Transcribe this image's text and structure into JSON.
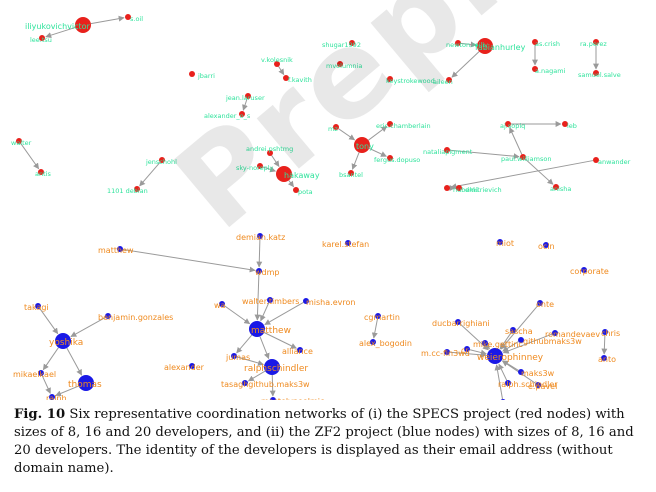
{
  "colors": {
    "specs_node": "#e8211c",
    "zf2_node": "#1a19e6",
    "specs_label": "#2fe39c",
    "zf2_label": "#ef8a1f",
    "edge": "#9a9a9a"
  },
  "watermark": "Preprint",
  "caption": {
    "figure_label": "Fig. 10",
    "text": "Six representative coordination networks of (i) the SPECS project (red nodes) with sizes of 8, 16 and 20 developers, and (ii) the ZF2 project (blue nodes) with sizes of 8, 16 and 20 developers. The identity of the developers is displayed as their email address (without domain name)."
  },
  "networks": [
    {
      "project": "SPECS",
      "nodes": [
        {
          "id": "s1",
          "label": "iliyukovichvictor",
          "big": true
        },
        {
          "id": "s2",
          "label": "lee.tsu"
        },
        {
          "id": "s3",
          "label": "s.oil"
        },
        {
          "id": "s4",
          "label": "jbarri"
        },
        {
          "id": "s5",
          "label": "v.kolesnik"
        },
        {
          "id": "s6",
          "label": "f.kavith"
        },
        {
          "id": "s7",
          "label": "shugar1992"
        },
        {
          "id": "s8",
          "label": "mvolumnia"
        },
        {
          "id": "s9",
          "label": "keystrokewood"
        },
        {
          "id": "s10",
          "label": "jean.laruser"
        },
        {
          "id": "s11",
          "label": "alexander_o_s"
        },
        {
          "id": "s12",
          "label": "walter"
        },
        {
          "id": "s13",
          "label": "antis"
        },
        {
          "id": "s14",
          "label": "jenschohl"
        },
        {
          "id": "s15",
          "label": "1101 debian"
        },
        {
          "id": "s16",
          "label": "andrei.pshtmg"
        },
        {
          "id": "s17",
          "label": "sky-noreply"
        },
        {
          "id": "s18",
          "label": "hakaway",
          "big": true
        },
        {
          "id": "s19",
          "label": "pota"
        },
        {
          "id": "s20",
          "label": "tony",
          "big": true
        },
        {
          "id": "s21",
          "label": "eric.chamberlain"
        },
        {
          "id": "s22",
          "label": "fergus.dopuso"
        },
        {
          "id": "s23",
          "label": "bsantel"
        },
        {
          "id": "s24",
          "label": "mz"
        },
        {
          "id": "s25",
          "label": "newton.reilly"
        },
        {
          "id": "s26",
          "label": "fabianhurley",
          "big": true
        },
        {
          "id": "s27",
          "label": "as.crish"
        },
        {
          "id": "s28",
          "label": "aileen"
        },
        {
          "id": "s29",
          "label": "a.nagami"
        },
        {
          "id": "s30",
          "label": "ra.perez"
        },
        {
          "id": "s31",
          "label": "samuel.salve"
        },
        {
          "id": "s32",
          "label": "nataliapigment"
        },
        {
          "id": "s33",
          "label": "paul.williamson"
        },
        {
          "id": "s34",
          "label": "anisha"
        },
        {
          "id": "s35",
          "label": "aj.sopiq"
        },
        {
          "id": "s36",
          "label": "leb"
        },
        {
          "id": "s37",
          "label": "anwander"
        },
        {
          "id": "s38",
          "label": "nubekki"
        },
        {
          "id": "s39",
          "label": "dmitrievich"
        }
      ]
    },
    {
      "project": "ZF2",
      "nodes": [
        {
          "id": "z1",
          "label": "matthew"
        },
        {
          "id": "z2",
          "label": "demian.katz"
        },
        {
          "id": "z3",
          "label": "karel.stefan"
        },
        {
          "id": "z4",
          "label": "wdmp"
        },
        {
          "id": "z5",
          "label": "miot"
        },
        {
          "id": "z6",
          "label": "ocin"
        },
        {
          "id": "z7",
          "label": "corporate"
        },
        {
          "id": "z8",
          "label": "takagi"
        },
        {
          "id": "z9",
          "label": "benjamin.gonzales"
        },
        {
          "id": "z10",
          "label": "yoshika",
          "big": true
        },
        {
          "id": "z11",
          "label": "mikaelkael"
        },
        {
          "id": "z12",
          "label": "thomas",
          "big": true
        },
        {
          "id": "z13",
          "label": "ralph"
        },
        {
          "id": "z14",
          "label": "alexander"
        },
        {
          "id": "z15",
          "label": "wa"
        },
        {
          "id": "z16",
          "label": "walter.timbers"
        },
        {
          "id": "z17",
          "label": "misha.evron"
        },
        {
          "id": "z18",
          "label": "matthew",
          "big": true
        },
        {
          "id": "z19",
          "label": "alliance"
        },
        {
          "id": "z20",
          "label": "jumas"
        },
        {
          "id": "z21",
          "label": "ralphschindler",
          "big": true
        },
        {
          "id": "z22",
          "label": "tasaghgithub.maks3w"
        },
        {
          "id": "z23",
          "label": "mastelypoolmic"
        },
        {
          "id": "z24",
          "label": "cgmartin"
        },
        {
          "id": "z25",
          "label": "alex_bogodin"
        },
        {
          "id": "z26",
          "label": "ducbarrighiani"
        },
        {
          "id": "z27",
          "label": "m.cc-fin3wd"
        },
        {
          "id": "z28",
          "label": "mike.gettinc"
        },
        {
          "id": "z29",
          "label": "sascha"
        },
        {
          "id": "z30",
          "label": "romandevaev"
        },
        {
          "id": "z31",
          "label": "githubmaks3w"
        },
        {
          "id": "z32",
          "label": "ralph.schindler"
        },
        {
          "id": "z33",
          "label": "admin"
        },
        {
          "id": "z34",
          "label": "e.pavel"
        },
        {
          "id": "z35",
          "label": "maks3w"
        },
        {
          "id": "z36",
          "label": "chris"
        },
        {
          "id": "z37",
          "label": "anto"
        },
        {
          "id": "z38",
          "label": "onte"
        },
        {
          "id": "z39",
          "label": "cr"
        },
        {
          "id": "z40",
          "label": "weierophinney",
          "big": true
        }
      ]
    }
  ]
}
